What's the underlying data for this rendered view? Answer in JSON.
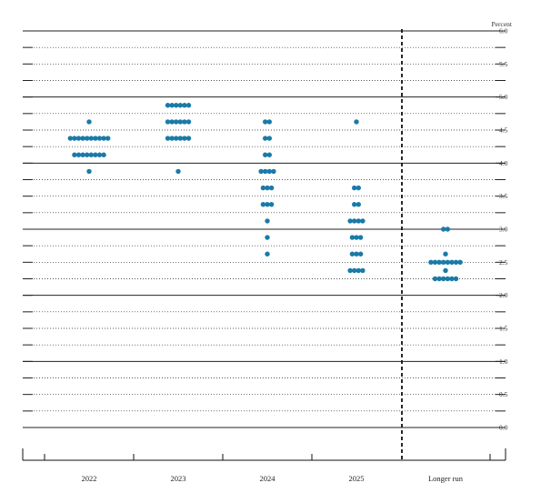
{
  "chart_data": {
    "type": "scatter",
    "unit_label": "Percent",
    "ylim": [
      0,
      6
    ],
    "y_ticks": [
      "0.0",
      "0.5",
      "1.0",
      "1.5",
      "2.0",
      "2.5",
      "3.0",
      "3.5",
      "4.0",
      "4.5",
      "5.0",
      "5.5",
      "6.0"
    ],
    "categories": [
      "2022",
      "2023",
      "2024",
      "2025",
      "Longer run"
    ],
    "dot_color": "#1a7aa8",
    "grid": "dotted every 0.25, solid every 1.0",
    "divider": "dashed vertical line before Longer run",
    "dots": [
      {
        "category": "2022",
        "rates": [
          {
            "rate": 4.625,
            "count": 1
          },
          {
            "rate": 4.375,
            "count": 10
          },
          {
            "rate": 4.125,
            "count": 8
          },
          {
            "rate": 3.875,
            "count": 1
          }
        ]
      },
      {
        "category": "2023",
        "rates": [
          {
            "rate": 4.875,
            "count": 6
          },
          {
            "rate": 4.625,
            "count": 6
          },
          {
            "rate": 4.375,
            "count": 6
          },
          {
            "rate": 3.875,
            "count": 1
          }
        ]
      },
      {
        "category": "2024",
        "rates": [
          {
            "rate": 4.625,
            "count": 2
          },
          {
            "rate": 4.375,
            "count": 2
          },
          {
            "rate": 4.125,
            "count": 2
          },
          {
            "rate": 3.875,
            "count": 4
          },
          {
            "rate": 3.625,
            "count": 3
          },
          {
            "rate": 3.375,
            "count": 3
          },
          {
            "rate": 3.125,
            "count": 1
          },
          {
            "rate": 2.875,
            "count": 1
          },
          {
            "rate": 2.625,
            "count": 1
          }
        ]
      },
      {
        "category": "2025",
        "rates": [
          {
            "rate": 4.625,
            "count": 1
          },
          {
            "rate": 3.625,
            "count": 2
          },
          {
            "rate": 3.375,
            "count": 2
          },
          {
            "rate": 3.125,
            "count": 4
          },
          {
            "rate": 2.875,
            "count": 3
          },
          {
            "rate": 2.625,
            "count": 3
          },
          {
            "rate": 2.375,
            "count": 4
          }
        ]
      },
      {
        "category": "Longer run",
        "rates": [
          {
            "rate": 3.0,
            "count": 2
          },
          {
            "rate": 2.625,
            "count": 1
          },
          {
            "rate": 2.5,
            "count": 8
          },
          {
            "rate": 2.375,
            "count": 1
          },
          {
            "rate": 2.25,
            "count": 6
          }
        ]
      }
    ]
  }
}
